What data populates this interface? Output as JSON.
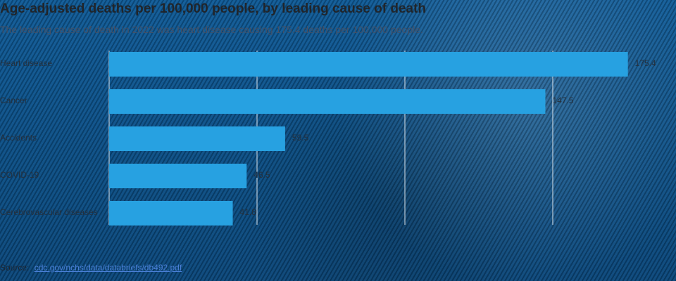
{
  "chart_data": {
    "type": "bar",
    "orientation": "horizontal",
    "title": "Age-adjusted deaths per 100,000 people, by leading cause of death",
    "subtitle": "The leading cause of death in 2022 was heart disease causing 175.4 deaths per 100,000 people.",
    "categories": [
      "Heart disease",
      "Cancer",
      "Accidents",
      "COVID-19",
      "Cerebrovascular diseases"
    ],
    "values": [
      175.4,
      147.5,
      59.5,
      46.5,
      41.8
    ],
    "value_labels": [
      "175.4",
      "147.5",
      "59.5",
      "46.5",
      "41.8"
    ],
    "xlim": [
      0,
      180
    ],
    "grid": true,
    "colors": {
      "bar": "#27a1e1",
      "grid": "#f0f6fb",
      "label": "#25303d"
    }
  },
  "source": {
    "label": "Source:",
    "link_text": "cdc.gov/nchs/data/databriefs/db492.pdf"
  }
}
